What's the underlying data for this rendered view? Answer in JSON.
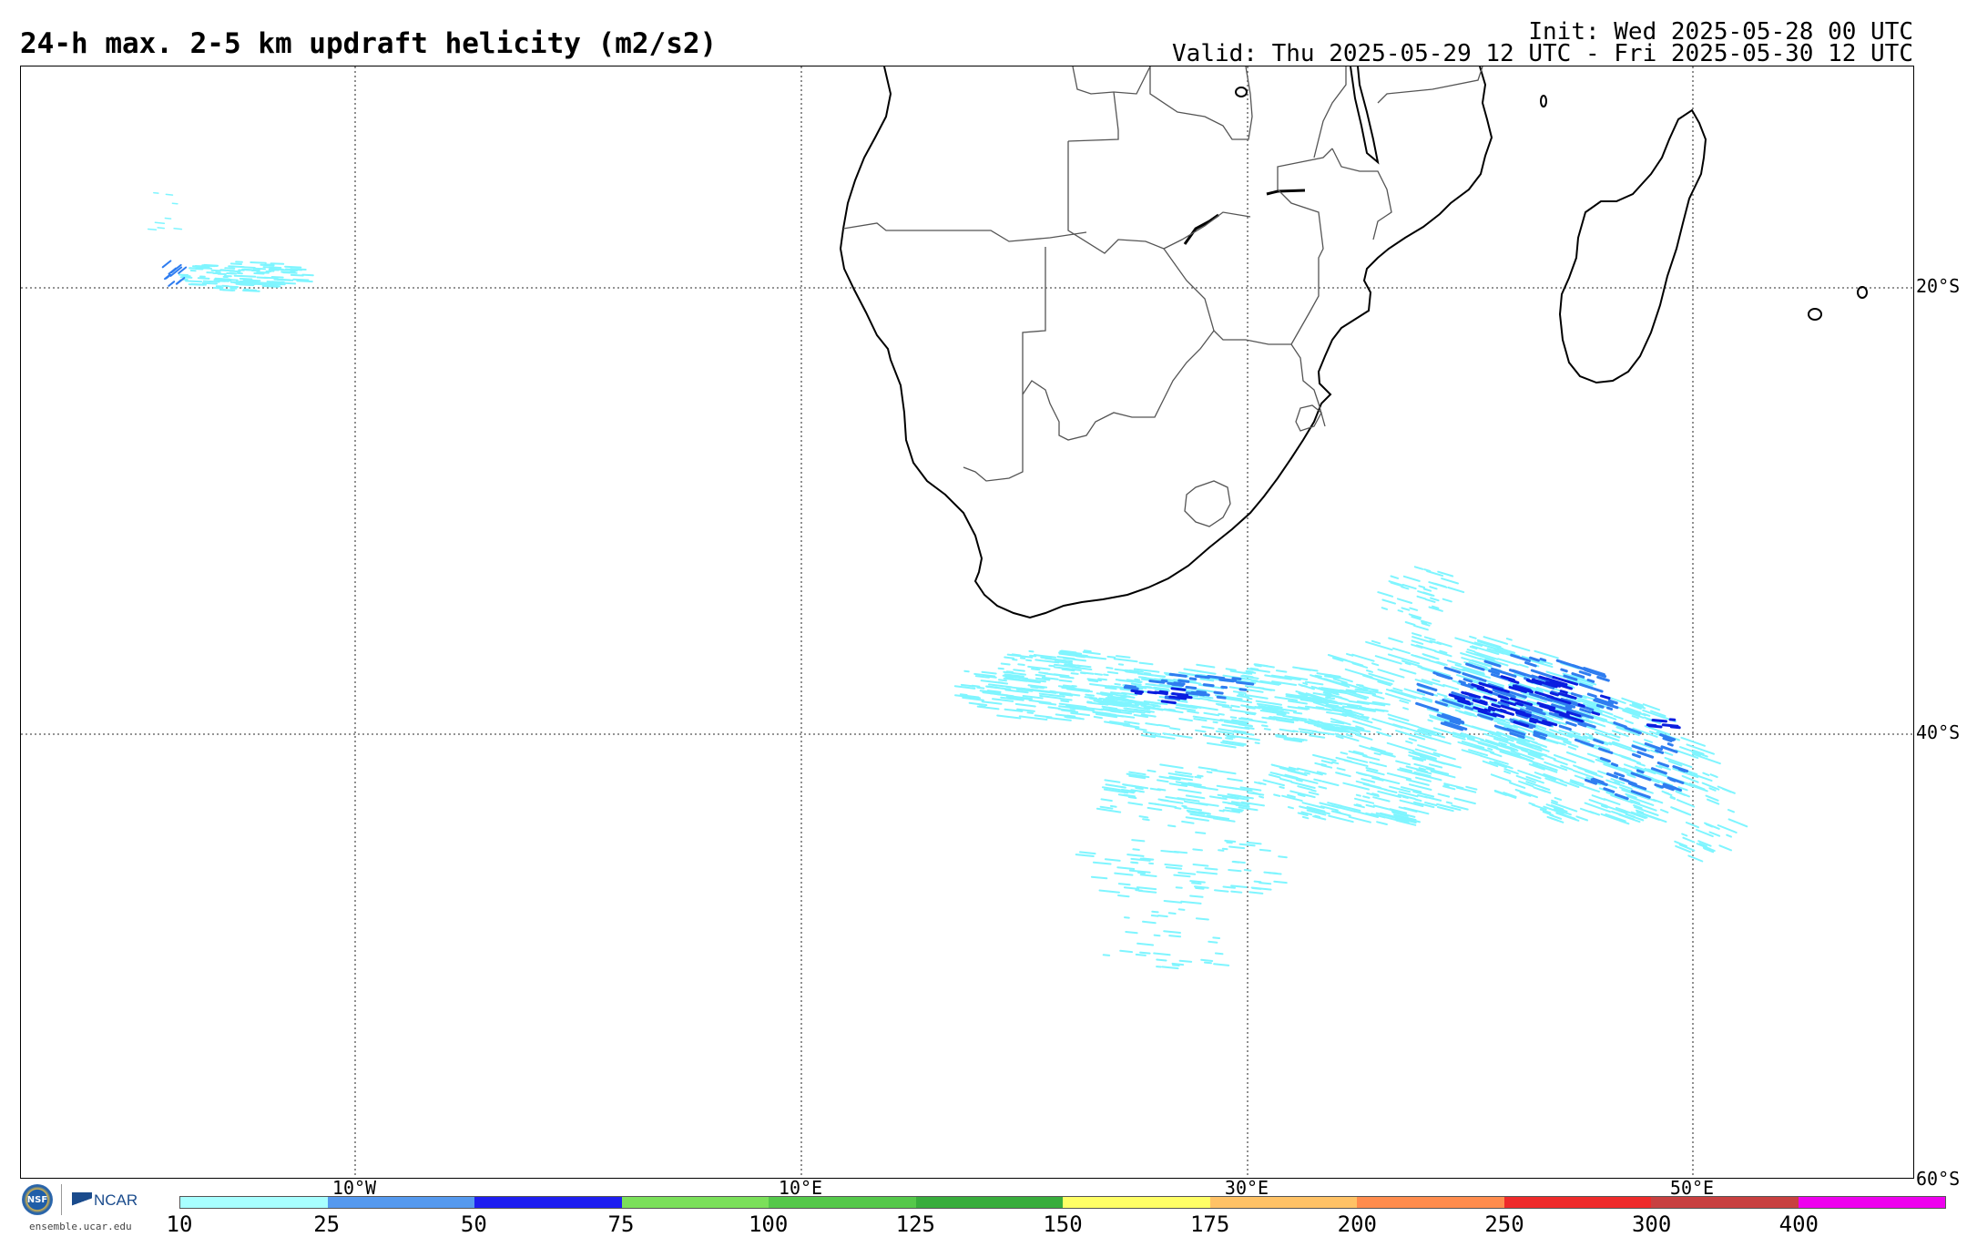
{
  "header": {
    "title": "24-h max. 2-5 km updraft helicity (m2/s2)",
    "init": "Init: Wed 2025-05-28 00 UTC",
    "valid": "Valid: Thu 2025-05-29 12 UTC - Fri 2025-05-30 12 UTC"
  },
  "map": {
    "lat_labels": [
      "20°S",
      "40°S",
      "60°S"
    ],
    "lon_labels": [
      "10°W",
      "10°E",
      "30°E",
      "50°E"
    ],
    "field_colors": {
      "light": "#7ff5ff",
      "mid": "#2f7df0",
      "dark": "#0a1ee0"
    },
    "coast_color": "#000000",
    "border_color": "#555555",
    "grid_style": "dotted"
  },
  "colorbar": {
    "labels": [
      "10",
      "25",
      "50",
      "75",
      "100",
      "125",
      "150",
      "175",
      "200",
      "250",
      "300",
      "400"
    ],
    "colors": [
      "#a8ffff",
      "#5599ee",
      "#1e1ef0",
      "#7be05a",
      "#55c84a",
      "#38ad3c",
      "#ffff66",
      "#ffc266",
      "#ff8c4d",
      "#ee2a2a",
      "#c84040",
      "#ee00ee"
    ]
  },
  "footer": {
    "nsf_logo_text": "NSF",
    "ncar_logo_text": "NCAR",
    "site": "ensemble.ucar.edu"
  }
}
